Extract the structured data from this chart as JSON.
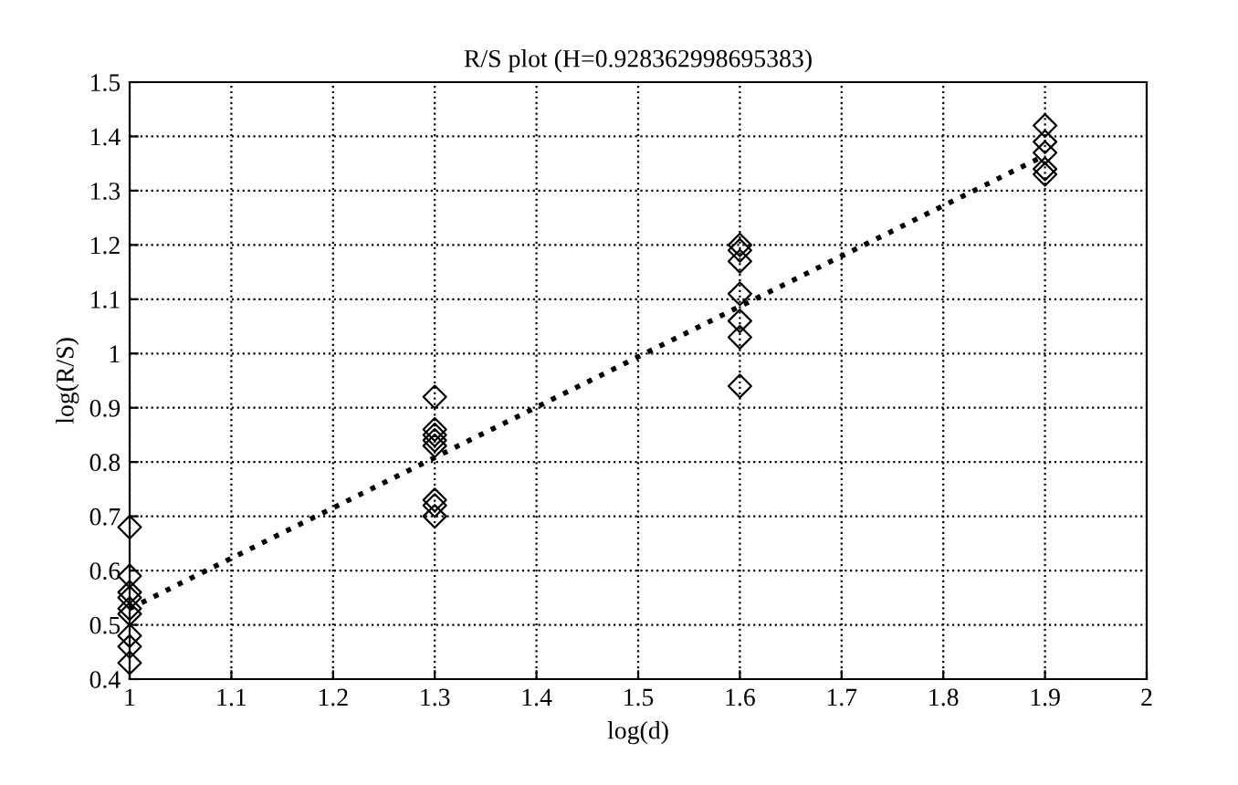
{
  "chart_data": {
    "type": "scatter",
    "title": "R/S plot (H=0.928362998695383)",
    "xlabel": "log(d)",
    "ylabel": "log(R/S)",
    "series": [
      {
        "color": "#000000",
        "marker": "diamond",
        "x": [
          1,
          1,
          1,
          1,
          1,
          1,
          1,
          1,
          1,
          1.3,
          1.3,
          1.3,
          1.3,
          1.3,
          1.3,
          1.3,
          1.3,
          1.6,
          1.6,
          1.6,
          1.6,
          1.6,
          1.6,
          1.6,
          1.9,
          1.9,
          1.9,
          1.9,
          1.9
        ],
        "values": [
          0.68,
          0.59,
          0.56,
          0.55,
          0.53,
          0.52,
          0.48,
          0.46,
          0.43,
          0.92,
          0.86,
          0.85,
          0.84,
          0.83,
          0.73,
          0.72,
          0.7,
          1.2,
          1.19,
          1.17,
          1.11,
          1.06,
          1.03,
          0.94,
          1.42,
          1.39,
          1.37,
          1.34,
          1.33
        ]
      },
      {
        "type": "line",
        "color": "#000000",
        "line_style": "dotted",
        "x": [
          1,
          1.9
        ],
        "values": [
          0.53,
          1.365
        ]
      }
    ],
    "xlim": [
      1,
      2
    ],
    "xticks": [
      1,
      1.1,
      1.2,
      1.3,
      1.4,
      1.5,
      1.6,
      1.7,
      1.8,
      1.9,
      2
    ],
    "ylim": [
      0.4,
      1.5
    ],
    "yticks": [
      0.4,
      0.5,
      0.6,
      0.7,
      0.8,
      0.9,
      1,
      1.1,
      1.2,
      1.3,
      1.4,
      1.5
    ],
    "grid": true
  }
}
